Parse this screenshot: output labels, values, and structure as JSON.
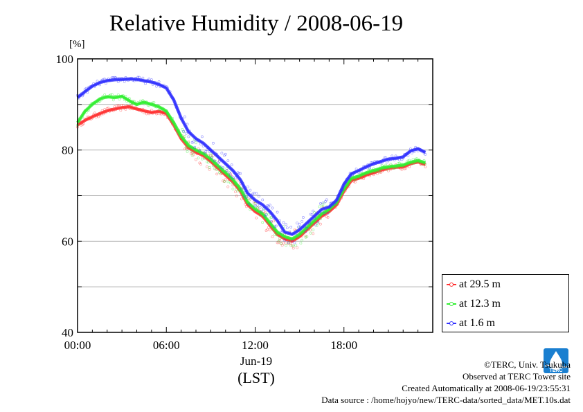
{
  "chart_data": {
    "type": "line",
    "title": "Relative Humidity / 2008-06-19",
    "ylabel": "[%]",
    "xlabel": "(LST)",
    "x_date_label": "Jun-19",
    "x_tick_labels": [
      "00:00",
      "06:00",
      "12:00",
      "18:00"
    ],
    "x_ticks_hours": [
      0,
      6,
      12,
      18
    ],
    "xlim_hours": [
      0,
      24
    ],
    "y_tick_labels": [
      "40",
      "60",
      "80",
      "100"
    ],
    "y_ticks": [
      40,
      60,
      80,
      100
    ],
    "ylim": [
      40,
      100
    ],
    "grid": true,
    "legend_position": "outside-right-bottom",
    "x_hours": [
      0,
      0.5,
      1,
      1.5,
      2,
      2.5,
      3,
      3.5,
      4,
      4.5,
      5,
      5.5,
      6,
      6.5,
      7,
      7.5,
      8,
      8.5,
      9,
      9.5,
      10,
      10.5,
      11,
      11.5,
      12,
      12.5,
      13,
      13.5,
      14,
      14.5,
      15,
      15.5,
      16,
      16.5,
      17,
      17.5,
      18,
      18.5,
      19,
      19.5,
      20,
      20.5,
      21,
      21.5,
      22,
      22.5,
      23,
      23.5
    ],
    "series": [
      {
        "name": "at 29.5 m",
        "color": "#ff3030",
        "values": [
          85.5,
          86.5,
          87.3,
          88.0,
          88.6,
          89.0,
          89.3,
          89.5,
          89.0,
          88.6,
          88.2,
          88.5,
          88.0,
          85.5,
          82.5,
          80.5,
          79.5,
          78.8,
          77.5,
          76.0,
          74.5,
          73.0,
          71.0,
          68.0,
          66.5,
          65.5,
          63.5,
          61.5,
          60.5,
          60.0,
          61.0,
          62.5,
          64.0,
          65.5,
          66.5,
          68.0,
          71.0,
          73.3,
          73.8,
          74.5,
          75.0,
          75.6,
          76.0,
          76.2,
          76.3,
          77.0,
          77.4,
          76.8
        ]
      },
      {
        "name": "at 12.3 m",
        "color": "#30ee30",
        "values": [
          86.0,
          88.5,
          90.0,
          91.2,
          91.7,
          91.5,
          91.8,
          90.8,
          90.0,
          90.5,
          90.0,
          89.5,
          88.5,
          86.0,
          83.0,
          81.0,
          80.0,
          79.2,
          78.0,
          76.5,
          75.0,
          73.5,
          71.5,
          68.5,
          67.0,
          66.0,
          64.0,
          62.0,
          61.0,
          60.5,
          61.5,
          63.0,
          64.5,
          66.0,
          67.0,
          68.5,
          71.5,
          73.8,
          74.3,
          75.0,
          75.5,
          76.0,
          76.3,
          76.5,
          76.7,
          77.3,
          77.7,
          77.2
        ]
      },
      {
        "name": "at 1.6 m",
        "color": "#3030ff",
        "values": [
          91.5,
          92.8,
          94.0,
          94.8,
          95.2,
          95.4,
          95.5,
          95.6,
          95.5,
          95.2,
          94.9,
          94.4,
          93.6,
          91.0,
          87.0,
          84.0,
          82.5,
          81.5,
          80.0,
          78.5,
          77.0,
          75.5,
          73.5,
          70.5,
          69.0,
          68.0,
          66.5,
          64.5,
          62.0,
          61.5,
          62.5,
          64.0,
          65.5,
          67.0,
          67.5,
          69.0,
          72.5,
          74.8,
          75.5,
          76.3,
          77.0,
          77.5,
          78.0,
          78.2,
          78.5,
          79.8,
          80.3,
          79.5
        ]
      }
    ]
  },
  "footer": {
    "copyright": "©TERC, Univ. Tsukuba",
    "site": "Observed at TERC Tower site",
    "created": "Created Automatically at 2008-06-19/23:55:31",
    "source": "Data source : /home/hojyo/new/TERC-data/sorted_data/MET.10s.dat"
  },
  "logo": {
    "text": "TERC",
    "color": "#1a7fd0"
  }
}
